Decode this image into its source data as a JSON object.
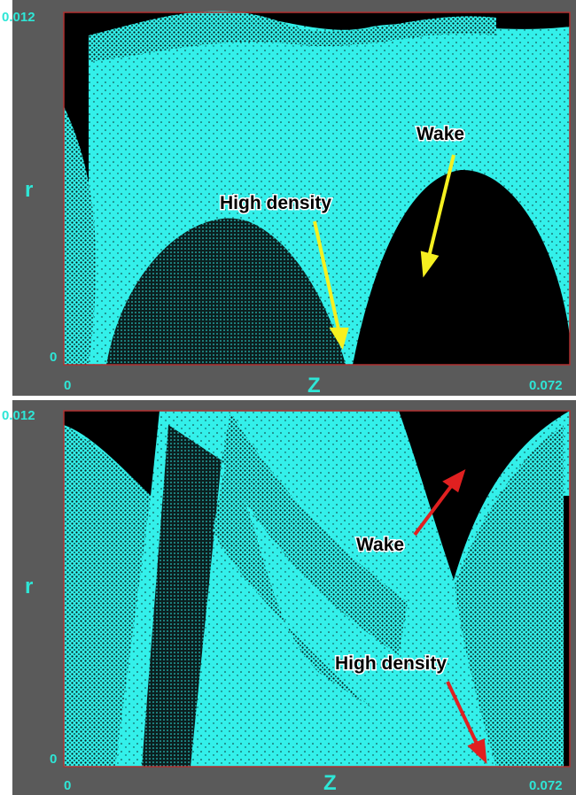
{
  "panels": [
    {
      "y_axis": {
        "label": "r",
        "ticks": [
          "0.012",
          "0"
        ]
      },
      "x_axis": {
        "label": "Z",
        "ticks": [
          "0",
          "0.072"
        ]
      },
      "annotations": [
        "High density",
        "Wake"
      ]
    },
    {
      "y_axis": {
        "label": "r",
        "ticks": [
          "0.012",
          "0"
        ]
      },
      "x_axis": {
        "label": "Z",
        "ticks": [
          "0",
          "0.072"
        ]
      },
      "annotations": [
        "Wake",
        "High density"
      ]
    }
  ]
}
